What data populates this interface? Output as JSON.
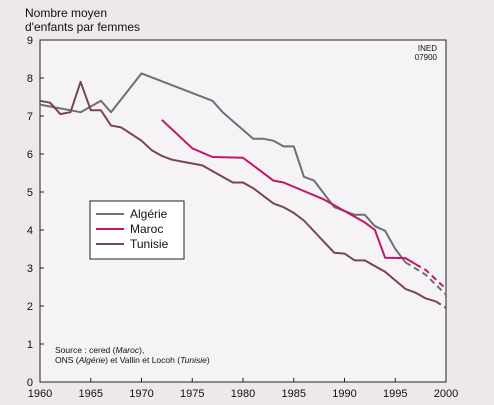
{
  "chart_data": {
    "type": "line",
    "ylabel": "Nombre moyen\nd'enfants par femmes",
    "xlim": [
      1960,
      2000
    ],
    "ylim": [
      0,
      9
    ],
    "x_ticks": [
      1960,
      1965,
      1970,
      1975,
      1980,
      1985,
      1990,
      1995,
      2000
    ],
    "y_ticks": [
      0,
      1,
      2,
      3,
      4,
      5,
      6,
      7,
      8,
      9
    ],
    "grid": false,
    "legend_position": "center-left",
    "corner_label": [
      "INED",
      "07900"
    ],
    "source": {
      "line1_prefix": "Source : cered (",
      "line1_italic": "Maroc",
      "line1_suffix": "),",
      "line2_prefix": "ONS (",
      "line2_italic1": "Algérie",
      "line2_mid": ") et Vallin et Locoh (",
      "line2_italic2": "Tunisie",
      "line2_suffix": ")"
    },
    "series": [
      {
        "name": "Algérie",
        "color": "#6f6f73",
        "points": [
          [
            1960,
            7.3
          ],
          [
            1962,
            7.2
          ],
          [
            1963,
            7.15
          ],
          [
            1964,
            7.1
          ],
          [
            1966,
            7.4
          ],
          [
            1967,
            7.1
          ],
          [
            1970,
            8.12
          ],
          [
            1977,
            7.4
          ],
          [
            1978,
            7.1
          ],
          [
            1981,
            6.4
          ],
          [
            1982,
            6.4
          ],
          [
            1983,
            6.35
          ],
          [
            1984,
            6.2
          ],
          [
            1985,
            6.2
          ],
          [
            1986,
            5.4
          ],
          [
            1987,
            5.3
          ],
          [
            1989,
            4.6
          ],
          [
            1991,
            4.4
          ],
          [
            1992,
            4.4
          ],
          [
            1993,
            4.1
          ],
          [
            1994,
            3.98
          ],
          [
            1995,
            3.5
          ],
          [
            1996,
            3.15
          ]
        ],
        "projection": [
          [
            1996,
            3.15
          ],
          [
            1998,
            2.82
          ],
          [
            2000,
            2.3
          ]
        ]
      },
      {
        "name": "Maroc",
        "color": "#c0176e",
        "points": [
          [
            1972,
            6.9
          ],
          [
            1975,
            6.15
          ],
          [
            1977,
            5.92
          ],
          [
            1980,
            5.9
          ],
          [
            1983,
            5.3
          ],
          [
            1984,
            5.25
          ],
          [
            1988,
            4.8
          ],
          [
            1990,
            4.5
          ],
          [
            1992,
            4.2
          ],
          [
            1993,
            4.0
          ],
          [
            1994,
            3.27
          ],
          [
            1996,
            3.26
          ],
          [
            1997,
            3.1
          ]
        ],
        "projection": [
          [
            1997,
            3.1
          ],
          [
            1998,
            2.95
          ],
          [
            2000,
            2.45
          ]
        ]
      },
      {
        "name": "Tunisie",
        "color": "#784458",
        "points": [
          [
            1960,
            7.4
          ],
          [
            1961,
            7.35
          ],
          [
            1962,
            7.05
          ],
          [
            1963,
            7.1
          ],
          [
            1964,
            7.9
          ],
          [
            1965,
            7.15
          ],
          [
            1966,
            7.15
          ],
          [
            1967,
            6.75
          ],
          [
            1968,
            6.7
          ],
          [
            1970,
            6.35
          ],
          [
            1971,
            6.1
          ],
          [
            1972,
            5.95
          ],
          [
            1973,
            5.85
          ],
          [
            1974,
            5.8
          ],
          [
            1976,
            5.7
          ],
          [
            1977,
            5.55
          ],
          [
            1979,
            5.25
          ],
          [
            1980,
            5.25
          ],
          [
            1981,
            5.1
          ],
          [
            1983,
            4.7
          ],
          [
            1984,
            4.6
          ],
          [
            1985,
            4.45
          ],
          [
            1986,
            4.25
          ],
          [
            1989,
            3.4
          ],
          [
            1990,
            3.38
          ],
          [
            1991,
            3.2
          ],
          [
            1992,
            3.2
          ],
          [
            1994,
            2.9
          ],
          [
            1996,
            2.45
          ],
          [
            1997,
            2.35
          ],
          [
            1998,
            2.2
          ],
          [
            1999,
            2.12
          ]
        ],
        "projection": [
          [
            1999,
            2.12
          ],
          [
            2000,
            1.95
          ]
        ]
      }
    ]
  }
}
